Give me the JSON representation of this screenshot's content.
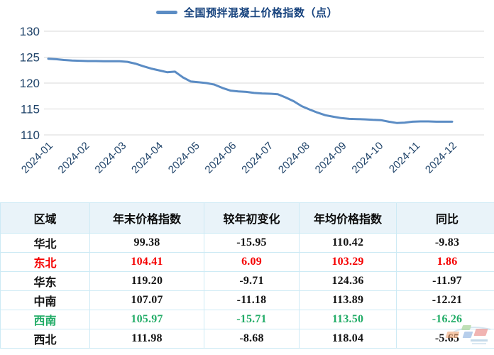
{
  "legend": {
    "label": "全国预拌混凝土价格指数（点）"
  },
  "chart_data": {
    "type": "line",
    "title": "全国预拌混凝土价格指数（点）",
    "series_name": "全国预拌混凝土价格指数（点）",
    "x_labels": [
      "2024-01",
      "2024-02",
      "2024-03",
      "2024-04",
      "2024-05",
      "2024-06",
      "2024-07",
      "2024-08",
      "2024-09",
      "2024-10",
      "2024-11",
      "2024-12"
    ],
    "y_ticks": [
      130,
      125,
      120,
      115,
      110
    ],
    "ylim": [
      108,
      131
    ],
    "grid": "horizontal",
    "legend_position": "top-center",
    "note": "values are weekly samples spaced evenly from 2024-01 to 2024-12",
    "values": [
      124.7,
      124.6,
      124.45,
      124.35,
      124.3,
      124.25,
      124.25,
      124.2,
      124.2,
      124.2,
      124.1,
      123.75,
      123.25,
      122.8,
      122.45,
      122.1,
      122.2,
      121.1,
      120.3,
      120.15,
      120.0,
      119.7,
      119.05,
      118.55,
      118.4,
      118.3,
      118.1,
      118.0,
      117.95,
      117.85,
      117.2,
      116.5,
      115.55,
      114.9,
      114.3,
      113.8,
      113.5,
      113.25,
      113.1,
      113.05,
      113.0,
      112.9,
      112.85,
      112.55,
      112.3,
      112.35,
      112.55,
      112.6,
      112.6,
      112.55,
      112.55,
      112.55
    ]
  },
  "table": {
    "headers": [
      "区域",
      "年末价格指数",
      "较年初变化",
      "年均价格指数",
      "同比"
    ],
    "rows": [
      {
        "region": "华北",
        "year_end_index": "99.38",
        "change_from_year_start": "-15.95",
        "annual_avg_index": "110.42",
        "yoy": "-9.83",
        "tone": "default"
      },
      {
        "region": "东北",
        "year_end_index": "104.41",
        "change_from_year_start": "6.09",
        "annual_avg_index": "103.29",
        "yoy": "1.86",
        "tone": "red"
      },
      {
        "region": "华东",
        "year_end_index": "119.20",
        "change_from_year_start": "-9.71",
        "annual_avg_index": "124.36",
        "yoy": "-11.97",
        "tone": "default"
      },
      {
        "region": "中南",
        "year_end_index": "107.07",
        "change_from_year_start": "-11.18",
        "annual_avg_index": "113.89",
        "yoy": "-12.21",
        "tone": "default"
      },
      {
        "region": "西南",
        "year_end_index": "105.97",
        "change_from_year_start": "-15.71",
        "annual_avg_index": "113.50",
        "yoy": "-16.26",
        "tone": "green"
      },
      {
        "region": "西北",
        "year_end_index": "111.98",
        "change_from_year_start": "-8.68",
        "annual_avg_index": "118.04",
        "yoy": "-5.65",
        "tone": "default"
      }
    ]
  },
  "colors": {
    "line": "#5b8cc4",
    "axis_text": "#1f4369",
    "legend_text": "#17437e",
    "grid": "#d9d9d9",
    "table_border": "#cdeaf5",
    "header_bg": "#e9f3f9",
    "row_tones": {
      "default": "#141414",
      "red": "#f50000",
      "green": "#22ac67"
    }
  }
}
